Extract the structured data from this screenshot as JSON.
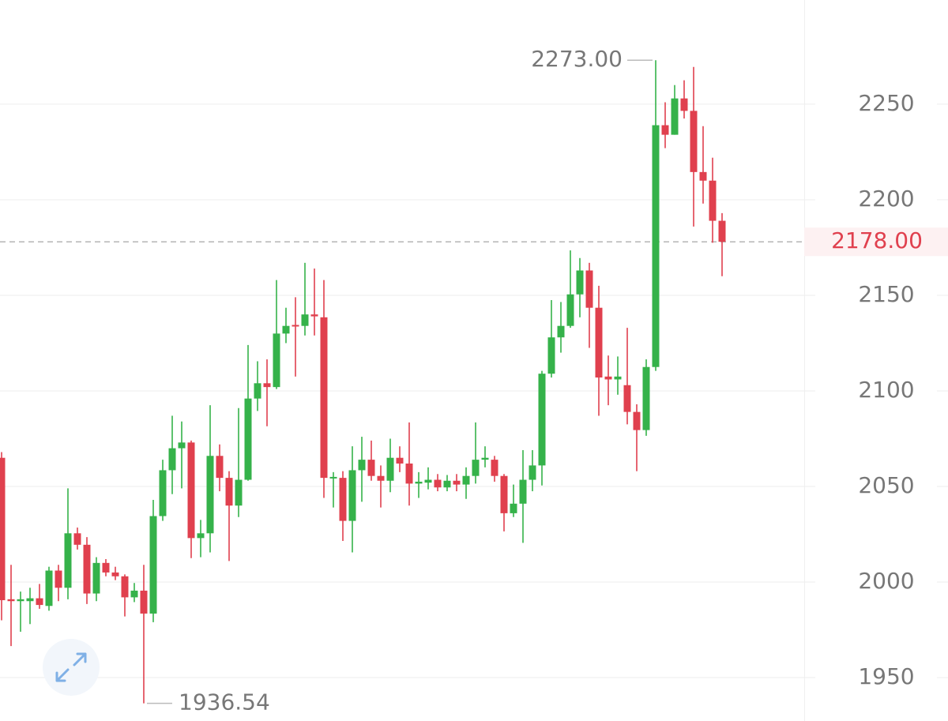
{
  "chart_data": {
    "type": "candlestick",
    "up_color": "#35b24a",
    "down_color": "#e0404e",
    "ylim": [
      1927.3,
      2304.5
    ],
    "yticks": [
      1950,
      2000,
      2050,
      2100,
      2150,
      2200,
      2250
    ],
    "grid": true,
    "open": [
      2065,
      1991,
      1990,
      1990,
      1991.5,
      1987.5,
      2006,
      1997,
      2025.5,
      2019.5,
      1994,
      2010,
      2005,
      2003,
      1992,
      1995.5,
      1983.5,
      2034.5,
      2058.5,
      2070,
      2073,
      2023,
      2025.5,
      2066,
      2054.5,
      2040,
      2053.5,
      2096,
      2104,
      2102,
      2130,
      2134.5,
      2134,
      2140,
      2138.5,
      2054.5,
      2054.5,
      2032,
      2058.5,
      2064,
      2055.5,
      2053,
      2065,
      2062,
      2051.5,
      2052,
      2053.5,
      2049.5,
      2053,
      2051,
      2055.5,
      2064,
      2064,
      2055.5,
      2036,
      2041,
      2053.5,
      2061,
      2109,
      2128,
      2134,
      2150.5,
      2163,
      2143.5,
      2107.5,
      2106,
      2103,
      2089,
      2079.5,
      2112.5,
      2239,
      2234,
      2253,
      2246.5,
      2214.5,
      2210,
      2189
    ],
    "high": [
      2068,
      2009,
      1995,
      1997,
      1999,
      2008,
      2009,
      2049,
      2028.5,
      2023.5,
      2013,
      2012,
      2008,
      2004,
      1999.5,
      2009,
      2043,
      2064,
      2087,
      2084,
      2074,
      2032.5,
      2092.5,
      2072,
      2058,
      2091,
      2124,
      2115.5,
      2116.5,
      2158,
      2143.5,
      2149,
      2167,
      2164,
      2158,
      2057.5,
      2058,
      2071,
      2076,
      2074,
      2061,
      2075,
      2071,
      2083.5,
      2057.5,
      2060,
      2056.5,
      2056,
      2056.5,
      2060,
      2083.5,
      2071,
      2066,
      2056.5,
      2051,
      2069,
      2069,
      2110.5,
      2147.5,
      2146.5,
      2173.5,
      2169.5,
      2167,
      2155,
      2118.5,
      2118,
      2133,
      2093,
      2116.5,
      2273,
      2251,
      2260,
      2262.5,
      2269.5,
      2238.5,
      2222,
      2193
    ],
    "low": [
      1980,
      1966.5,
      1974,
      1978,
      1986,
      1985,
      1990,
      1991,
      2017,
      1988.5,
      1990,
      2003,
      2001,
      1982,
      1989.5,
      1936.54,
      1979,
      2032,
      2046,
      2049,
      2012.5,
      2013,
      2015.5,
      2047.5,
      2011,
      2034,
      2053,
      2089.5,
      2081.5,
      2101,
      2125,
      2107.5,
      2129,
      2129,
      2044,
      2039,
      2021.5,
      2015.5,
      2042,
      2053,
      2039,
      2047,
      2057.5,
      2040,
      2044,
      2048.5,
      2047.5,
      2047.5,
      2047.5,
      2043.5,
      2051.5,
      2060,
      2052.5,
      2026.5,
      2034,
      2020.5,
      2047.5,
      2050.5,
      2107,
      2120,
      2133,
      2138.5,
      2122.5,
      2087,
      2092.5,
      2098,
      2082.5,
      2058,
      2076.5,
      2110.5,
      2227,
      2234,
      2242.5,
      2186,
      2198,
      2177.5,
      2160
    ],
    "close": [
      1990.5,
      1990,
      1991,
      1991.5,
      1988,
      2006,
      1997,
      2025.5,
      2019.5,
      1994,
      2010,
      2005,
      2003,
      1992,
      1995.5,
      1983.5,
      2034.5,
      2058.5,
      2070,
      2073,
      2023,
      2025.5,
      2066,
      2054.5,
      2040,
      2053.5,
      2096,
      2104,
      2102,
      2130,
      2134,
      2134,
      2140,
      2139,
      2054.5,
      2055,
      2032,
      2058.5,
      2064,
      2055.5,
      2053,
      2065,
      2062,
      2051.5,
      2052.5,
      2053.5,
      2049.5,
      2053,
      2051,
      2055.5,
      2064,
      2065,
      2055.5,
      2036,
      2041,
      2053.5,
      2061,
      2109,
      2128,
      2134,
      2150.5,
      2163,
      2143.5,
      2107,
      2106,
      2107.5,
      2089,
      2079.5,
      2112.5,
      2239,
      2234,
      2253,
      2246.5,
      2214.5,
      2210,
      2189,
      2178
    ],
    "annotations": [
      {
        "value": 2273,
        "label": "2273.00"
      },
      {
        "value": 1936.54,
        "label": "1936.54"
      }
    ],
    "current_price": {
      "value": 2178,
      "label": "2178.00"
    }
  }
}
